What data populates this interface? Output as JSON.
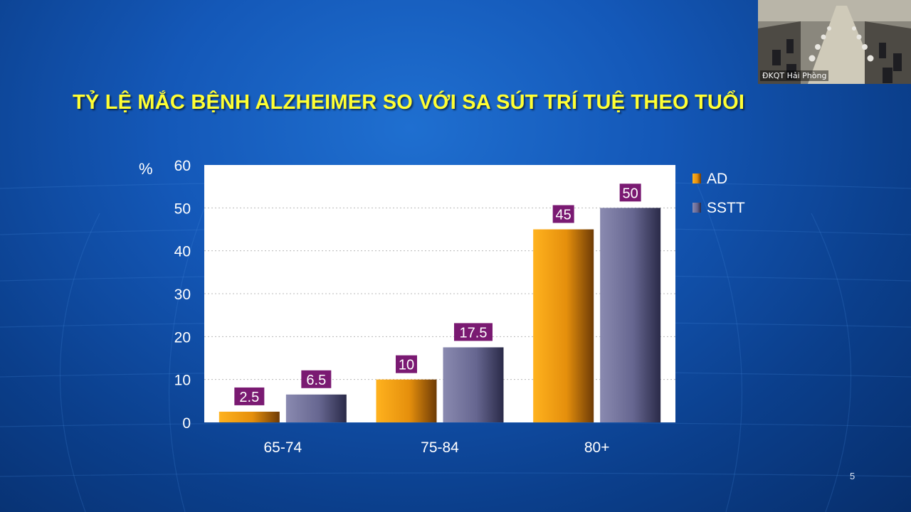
{
  "slide": {
    "title": "TỶ LỆ MẮC BỆNH ALZHEIMER SO VỚI SA SÚT TRÍ TUỆ THEO TUỔI",
    "page_number": "5"
  },
  "video": {
    "participant_label": "ĐKQT Hải Phòng"
  },
  "colors": {
    "ad_bar": "#f4a012",
    "sstt_bar": "#6b6b93",
    "label_box": "#7a1a72",
    "title": "#ffff33"
  },
  "chart_data": {
    "type": "bar",
    "categories": [
      "65-74",
      "75-84",
      "80+"
    ],
    "series": [
      {
        "name": "AD",
        "values": [
          2.5,
          10,
          45
        ]
      },
      {
        "name": "SSTT",
        "values": [
          6.5,
          17.5,
          50
        ]
      }
    ],
    "ylabel": "%",
    "ylim": [
      0,
      60
    ],
    "yticks": [
      0,
      10,
      20,
      30,
      40,
      50,
      60
    ],
    "grid": true,
    "legend": "right"
  }
}
